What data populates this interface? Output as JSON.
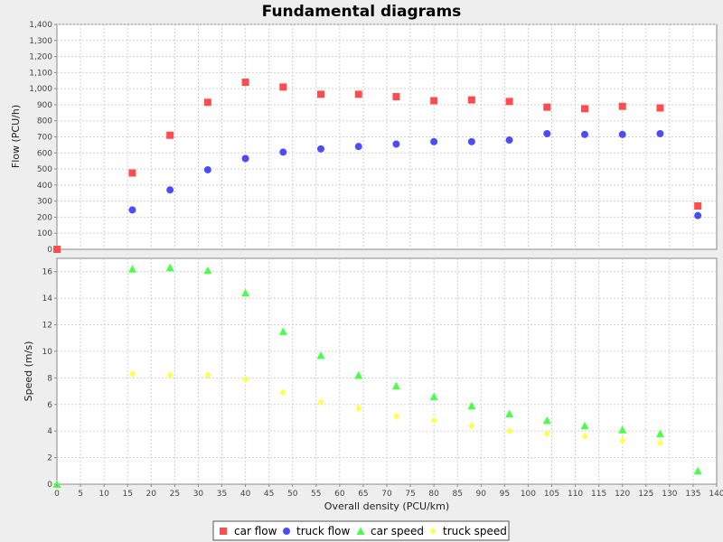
{
  "chart_data": {
    "title": "Fundamental diagrams",
    "type": "scatter",
    "xlabel": "Overall density (PCU/km)",
    "xlim": [
      0,
      140
    ],
    "x_ticks": [
      0,
      5,
      10,
      15,
      20,
      25,
      30,
      35,
      40,
      45,
      50,
      55,
      60,
      65,
      70,
      75,
      80,
      85,
      90,
      95,
      100,
      105,
      110,
      115,
      120,
      125,
      130,
      135,
      140
    ],
    "grid": true,
    "legend_placement": "bottom",
    "subplots": [
      {
        "ylabel": "Flow (PCU/h)",
        "ylim": [
          0,
          1400
        ],
        "y_ticks": [
          0,
          100,
          200,
          300,
          400,
          500,
          600,
          700,
          800,
          900,
          1000,
          1100,
          1200,
          1300,
          1400
        ],
        "series": [
          {
            "name": "car flow",
            "marker": "square",
            "color": "#ff4c4c",
            "x": [
              0,
              16,
              24,
              32,
              40,
              48,
              56,
              64,
              72,
              80,
              88,
              96,
              104,
              112,
              120,
              128,
              136
            ],
            "y": [
              0,
              475,
              710,
              915,
              1040,
              1010,
              965,
              965,
              950,
              925,
              930,
              920,
              885,
              875,
              890,
              880,
              270
            ]
          },
          {
            "name": "truck flow",
            "marker": "circle",
            "color": "#4c4cff",
            "x": [
              16,
              24,
              32,
              40,
              48,
              56,
              64,
              72,
              80,
              88,
              96,
              104,
              112,
              120,
              128,
              136
            ],
            "y": [
              245,
              370,
              495,
              565,
              605,
              625,
              640,
              655,
              670,
              670,
              680,
              720,
              715,
              715,
              720,
              210
            ]
          }
        ]
      },
      {
        "ylabel": "Speed (m/s)",
        "ylim": [
          0,
          17
        ],
        "y_ticks": [
          0,
          2,
          4,
          6,
          8,
          10,
          12,
          14,
          16
        ],
        "series": [
          {
            "name": "car speed",
            "marker": "triangle",
            "color": "#4cff4c",
            "x": [
              0,
              16,
              24,
              32,
              40,
              48,
              56,
              64,
              72,
              80,
              88,
              96,
              104,
              112,
              120,
              128,
              136
            ],
            "y": [
              0,
              16.2,
              16.3,
              16.1,
              14.4,
              11.5,
              9.7,
              8.2,
              7.4,
              6.6,
              5.9,
              5.3,
              4.8,
              4.4,
              4.1,
              3.8,
              1.0
            ]
          },
          {
            "name": "truck speed",
            "marker": "diamond",
            "color": "#ffff4c",
            "x": [
              16,
              24,
              32,
              40,
              48,
              56,
              64,
              72,
              80,
              88,
              96,
              104,
              112,
              120,
              128
            ],
            "y": [
              8.3,
              8.2,
              8.2,
              7.9,
              6.9,
              6.2,
              5.7,
              5.1,
              4.8,
              4.4,
              4.0,
              3.8,
              3.6,
              3.3,
              3.1
            ]
          }
        ]
      }
    ]
  },
  "legend": {
    "items": [
      {
        "label": "car flow",
        "marker": "square",
        "color": "#ff4c4c"
      },
      {
        "label": "truck flow",
        "marker": "circle",
        "color": "#4c4cff"
      },
      {
        "label": "car speed",
        "marker": "triangle",
        "color": "#4cff4c"
      },
      {
        "label": "truck speed",
        "marker": "diamond",
        "color": "#ffff4c"
      }
    ]
  }
}
